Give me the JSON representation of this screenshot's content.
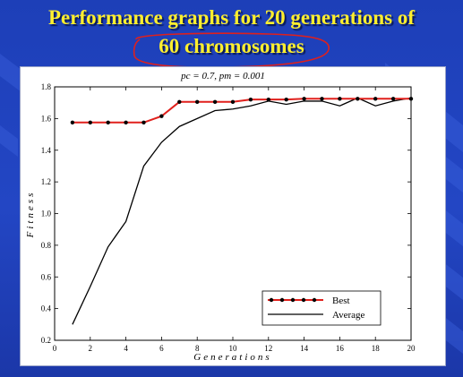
{
  "slide": {
    "title_line1": "Performance graphs for 20 generations of",
    "title_line2": "60 chromosomes"
  },
  "colors": {
    "background": "#2346c4",
    "title": "#ffef2e",
    "annotation": "#e0201c",
    "best_line": "#e0201c",
    "best_marker": "#000000",
    "average_line": "#000000"
  },
  "chart_data": {
    "type": "line",
    "title": "pc = 0.7, pm = 0.001",
    "xlabel": "Generations",
    "ylabel": "Fitness",
    "xlim": [
      0,
      20
    ],
    "ylim": [
      0.2,
      1.8
    ],
    "xticks": [
      0,
      2,
      4,
      6,
      8,
      10,
      12,
      14,
      16,
      18,
      20
    ],
    "yticks": [
      0.2,
      0.4,
      0.6,
      0.8,
      1.0,
      1.2,
      1.4,
      1.6,
      1.8
    ],
    "grid": false,
    "legend": "bottom-right",
    "series": [
      {
        "name": "Best",
        "x": [
          1,
          2,
          3,
          4,
          5,
          6,
          7,
          8,
          9,
          10,
          11,
          12,
          13,
          14,
          15,
          16,
          17,
          18,
          19,
          20
        ],
        "y": [
          1.575,
          1.575,
          1.575,
          1.575,
          1.575,
          1.615,
          1.705,
          1.705,
          1.705,
          1.705,
          1.72,
          1.72,
          1.72,
          1.725,
          1.725,
          1.725,
          1.725,
          1.725,
          1.725,
          1.725
        ],
        "markers": true
      },
      {
        "name": "Average",
        "x": [
          1,
          2,
          3,
          4,
          5,
          6,
          7,
          8,
          9,
          10,
          11,
          12,
          13,
          14,
          15,
          16,
          17,
          18,
          19,
          20
        ],
        "y": [
          0.3,
          0.54,
          0.79,
          0.95,
          1.3,
          1.45,
          1.55,
          1.6,
          1.65,
          1.66,
          1.68,
          1.71,
          1.69,
          1.71,
          1.71,
          1.68,
          1.73,
          1.68,
          1.71,
          1.73
        ],
        "markers": false
      }
    ]
  }
}
